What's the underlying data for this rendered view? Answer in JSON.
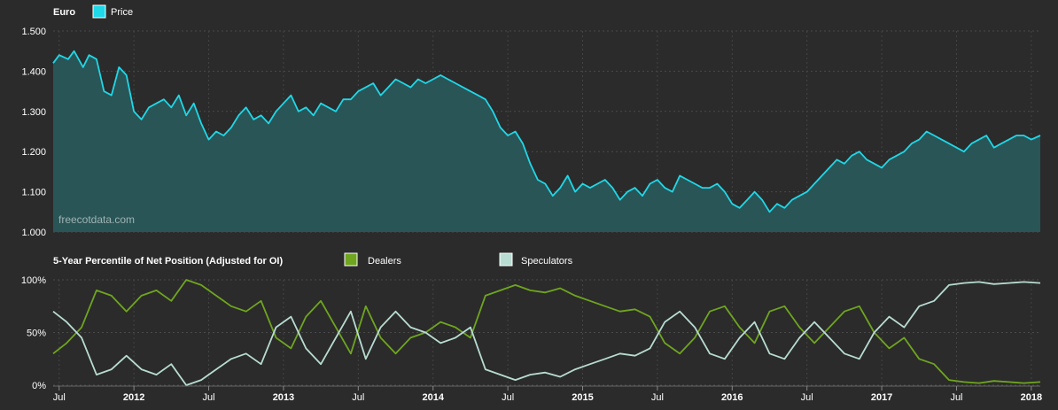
{
  "chart_data": [
    {
      "type": "area",
      "title": "Euro",
      "series": [
        {
          "name": "Price",
          "color": "#1fd8e8",
          "fill": "#2a5557"
        }
      ],
      "watermark": "freecotdata.com",
      "ylim": [
        1.0,
        1.5
      ],
      "yticks": [
        "1.500",
        "1.400",
        "1.300",
        "1.200",
        "1.100",
        "1.000"
      ],
      "x": [
        2011.46,
        2011.5,
        2011.56,
        2011.6,
        2011.66,
        2011.7,
        2011.75,
        2011.8,
        2011.85,
        2011.9,
        2011.95,
        2012.0,
        2012.05,
        2012.1,
        2012.15,
        2012.2,
        2012.25,
        2012.3,
        2012.35,
        2012.4,
        2012.45,
        2012.5,
        2012.55,
        2012.6,
        2012.65,
        2012.7,
        2012.75,
        2012.8,
        2012.85,
        2012.9,
        2012.95,
        2013.0,
        2013.05,
        2013.1,
        2013.15,
        2013.2,
        2013.25,
        2013.3,
        2013.35,
        2013.4,
        2013.45,
        2013.5,
        2013.55,
        2013.6,
        2013.65,
        2013.7,
        2013.75,
        2013.8,
        2013.85,
        2013.9,
        2013.95,
        2014.0,
        2014.05,
        2014.1,
        2014.15,
        2014.2,
        2014.25,
        2014.3,
        2014.35,
        2014.4,
        2014.45,
        2014.5,
        2014.55,
        2014.6,
        2014.65,
        2014.7,
        2014.75,
        2014.8,
        2014.85,
        2014.9,
        2014.95,
        2015.0,
        2015.05,
        2015.1,
        2015.15,
        2015.2,
        2015.25,
        2015.3,
        2015.35,
        2015.4,
        2015.45,
        2015.5,
        2015.55,
        2015.6,
        2015.65,
        2015.7,
        2015.75,
        2015.8,
        2015.85,
        2015.9,
        2015.95,
        2016.0,
        2016.05,
        2016.1,
        2016.15,
        2016.2,
        2016.25,
        2016.3,
        2016.35,
        2016.4,
        2016.45,
        2016.5,
        2016.55,
        2016.6,
        2016.65,
        2016.7,
        2016.75,
        2016.8,
        2016.85,
        2016.9,
        2016.95,
        2017.0,
        2017.05,
        2017.1,
        2017.15,
        2017.2,
        2017.25,
        2017.3,
        2017.35,
        2017.4,
        2017.45,
        2017.5,
        2017.55,
        2017.6,
        2017.65,
        2017.7,
        2017.75,
        2017.8,
        2017.85,
        2017.9,
        2017.95,
        2018.0,
        2018.06
      ],
      "values": [
        1.42,
        1.44,
        1.43,
        1.45,
        1.41,
        1.44,
        1.43,
        1.35,
        1.34,
        1.41,
        1.39,
        1.3,
        1.28,
        1.31,
        1.32,
        1.33,
        1.31,
        1.34,
        1.29,
        1.32,
        1.27,
        1.23,
        1.25,
        1.24,
        1.26,
        1.29,
        1.31,
        1.28,
        1.29,
        1.27,
        1.3,
        1.32,
        1.34,
        1.3,
        1.31,
        1.29,
        1.32,
        1.31,
        1.3,
        1.33,
        1.33,
        1.35,
        1.36,
        1.37,
        1.34,
        1.36,
        1.38,
        1.37,
        1.36,
        1.38,
        1.37,
        1.38,
        1.39,
        1.38,
        1.37,
        1.36,
        1.35,
        1.34,
        1.33,
        1.3,
        1.26,
        1.24,
        1.25,
        1.22,
        1.17,
        1.13,
        1.12,
        1.09,
        1.11,
        1.14,
        1.1,
        1.12,
        1.11,
        1.12,
        1.13,
        1.11,
        1.08,
        1.1,
        1.11,
        1.09,
        1.12,
        1.13,
        1.11,
        1.1,
        1.14,
        1.13,
        1.12,
        1.11,
        1.11,
        1.12,
        1.1,
        1.07,
        1.06,
        1.08,
        1.1,
        1.08,
        1.05,
        1.07,
        1.06,
        1.08,
        1.09,
        1.1,
        1.12,
        1.14,
        1.16,
        1.18,
        1.17,
        1.19,
        1.2,
        1.18,
        1.17,
        1.16,
        1.18,
        1.19,
        1.2,
        1.22,
        1.23,
        1.25,
        1.24,
        1.23,
        1.22,
        1.21,
        1.2,
        1.22,
        1.23,
        1.24,
        1.21,
        1.22,
        1.23,
        1.24,
        1.24,
        1.23,
        1.24
      ]
    },
    {
      "type": "line",
      "title": "5-Year Percentile of Net Position (Adjusted for OI)",
      "ylim": [
        0,
        100
      ],
      "yticks": [
        "100%",
        "50%",
        "0%"
      ],
      "x_ticks": [
        {
          "label": "Jul",
          "x": 2011.5,
          "bold": false
        },
        {
          "label": "2012",
          "x": 2012.0,
          "bold": true
        },
        {
          "label": "Jul",
          "x": 2012.5,
          "bold": false
        },
        {
          "label": "2013",
          "x": 2013.0,
          "bold": true
        },
        {
          "label": "Jul",
          "x": 2013.5,
          "bold": false
        },
        {
          "label": "2014",
          "x": 2014.0,
          "bold": true
        },
        {
          "label": "Jul",
          "x": 2014.5,
          "bold": false
        },
        {
          "label": "2015",
          "x": 2015.0,
          "bold": true
        },
        {
          "label": "Jul",
          "x": 2015.5,
          "bold": false
        },
        {
          "label": "2016",
          "x": 2016.0,
          "bold": true
        },
        {
          "label": "Jul",
          "x": 2016.5,
          "bold": false
        },
        {
          "label": "2017",
          "x": 2017.0,
          "bold": true
        },
        {
          "label": "Jul",
          "x": 2017.5,
          "bold": false
        },
        {
          "label": "2018",
          "x": 2018.0,
          "bold": true
        }
      ],
      "series": [
        {
          "name": "Dealers",
          "color": "#6fa51f",
          "x": [
            2011.46,
            2011.55,
            2011.65,
            2011.75,
            2011.85,
            2011.95,
            2012.05,
            2012.15,
            2012.25,
            2012.35,
            2012.45,
            2012.55,
            2012.65,
            2012.75,
            2012.85,
            2012.95,
            2013.05,
            2013.15,
            2013.25,
            2013.35,
            2013.45,
            2013.55,
            2013.65,
            2013.75,
            2013.85,
            2013.95,
            2014.05,
            2014.15,
            2014.25,
            2014.35,
            2014.45,
            2014.55,
            2014.65,
            2014.75,
            2014.85,
            2014.95,
            2015.05,
            2015.15,
            2015.25,
            2015.35,
            2015.45,
            2015.55,
            2015.65,
            2015.75,
            2015.85,
            2015.95,
            2016.05,
            2016.15,
            2016.25,
            2016.35,
            2016.45,
            2016.55,
            2016.65,
            2016.75,
            2016.85,
            2016.95,
            2017.05,
            2017.15,
            2017.25,
            2017.35,
            2017.45,
            2017.55,
            2017.65,
            2017.75,
            2017.85,
            2017.95,
            2018.06
          ],
          "values": [
            30,
            40,
            55,
            90,
            85,
            70,
            85,
            90,
            80,
            100,
            95,
            85,
            75,
            70,
            80,
            45,
            35,
            65,
            80,
            55,
            30,
            75,
            45,
            30,
            45,
            50,
            60,
            55,
            45,
            85,
            90,
            95,
            90,
            88,
            92,
            85,
            80,
            75,
            70,
            72,
            65,
            40,
            30,
            45,
            70,
            75,
            55,
            40,
            70,
            75,
            55,
            40,
            55,
            70,
            75,
            50,
            35,
            45,
            25,
            20,
            5,
            3,
            2,
            4,
            3,
            2,
            3
          ]
        },
        {
          "name": "Speculators",
          "color": "#b8dcd2",
          "x": [
            2011.46,
            2011.55,
            2011.65,
            2011.75,
            2011.85,
            2011.95,
            2012.05,
            2012.15,
            2012.25,
            2012.35,
            2012.45,
            2012.55,
            2012.65,
            2012.75,
            2012.85,
            2012.95,
            2013.05,
            2013.15,
            2013.25,
            2013.35,
            2013.45,
            2013.55,
            2013.65,
            2013.75,
            2013.85,
            2013.95,
            2014.05,
            2014.15,
            2014.25,
            2014.35,
            2014.45,
            2014.55,
            2014.65,
            2014.75,
            2014.85,
            2014.95,
            2015.05,
            2015.15,
            2015.25,
            2015.35,
            2015.45,
            2015.55,
            2015.65,
            2015.75,
            2015.85,
            2015.95,
            2016.05,
            2016.15,
            2016.25,
            2016.35,
            2016.45,
            2016.55,
            2016.65,
            2016.75,
            2016.85,
            2016.95,
            2017.05,
            2017.15,
            2017.25,
            2017.35,
            2017.45,
            2017.55,
            2017.65,
            2017.75,
            2017.85,
            2017.95,
            2018.06
          ],
          "values": [
            70,
            60,
            45,
            10,
            15,
            28,
            15,
            10,
            20,
            0,
            5,
            15,
            25,
            30,
            20,
            55,
            65,
            35,
            20,
            45,
            70,
            25,
            55,
            70,
            55,
            50,
            40,
            45,
            55,
            15,
            10,
            5,
            10,
            12,
            8,
            15,
            20,
            25,
            30,
            28,
            35,
            60,
            70,
            55,
            30,
            25,
            45,
            60,
            30,
            25,
            45,
            60,
            45,
            30,
            25,
            50,
            65,
            55,
            75,
            80,
            95,
            97,
            98,
            96,
            97,
            98,
            97
          ]
        }
      ]
    }
  ]
}
